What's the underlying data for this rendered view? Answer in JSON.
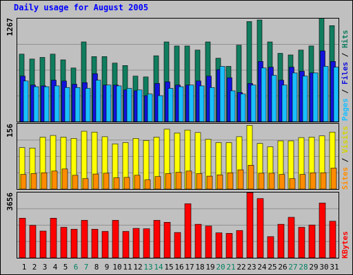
{
  "chart_data": [
    {
      "type": "bar",
      "title": "Daily usage for August 2005",
      "panel": "top",
      "max_label": "1267",
      "ylim": [
        0,
        1267
      ],
      "categories": [
        "1",
        "2",
        "3",
        "4",
        "5",
        "6",
        "7",
        "8",
        "9",
        "10",
        "11",
        "12",
        "13",
        "14",
        "15",
        "16",
        "17",
        "18",
        "19",
        "20",
        "21",
        "22",
        "23",
        "24",
        "25",
        "26",
        "27",
        "28",
        "29",
        "30",
        "31"
      ],
      "weekend_days": [
        "6",
        "7",
        "13",
        "14",
        "20",
        "21",
        "27",
        "28"
      ],
      "y_label_parts": [
        "Pages",
        "Files",
        "Hits"
      ],
      "series": [
        {
          "name": "Hits",
          "color": "#107d5e",
          "values": [
            830,
            770,
            790,
            830,
            760,
            660,
            980,
            800,
            800,
            720,
            690,
            560,
            550,
            810,
            980,
            930,
            930,
            880,
            980,
            780,
            680,
            940,
            1230,
            1250,
            980,
            840,
            820,
            880,
            930,
            1270,
            1180
          ]
        },
        {
          "name": "Files",
          "color": "#1212dc",
          "values": [
            560,
            450,
            440,
            510,
            500,
            460,
            480,
            590,
            450,
            450,
            390,
            380,
            320,
            470,
            490,
            450,
            450,
            500,
            560,
            640,
            540,
            360,
            470,
            740,
            670,
            510,
            670,
            620,
            600,
            870,
            740
          ]
        },
        {
          "name": "Pages",
          "color": "#19bfff",
          "values": [
            500,
            430,
            430,
            440,
            420,
            420,
            410,
            510,
            450,
            440,
            410,
            390,
            340,
            320,
            410,
            430,
            450,
            440,
            420,
            680,
            380,
            340,
            450,
            660,
            570,
            450,
            600,
            560,
            600,
            680,
            670
          ]
        }
      ],
      "grid": true
    },
    {
      "type": "bar",
      "panel": "middle",
      "max_label": "156",
      "ylim": [
        0,
        156
      ],
      "categories": [
        "1",
        "2",
        "3",
        "4",
        "5",
        "6",
        "7",
        "8",
        "9",
        "10",
        "11",
        "12",
        "13",
        "14",
        "15",
        "16",
        "17",
        "18",
        "19",
        "20",
        "21",
        "22",
        "23",
        "24",
        "25",
        "26",
        "27",
        "28",
        "29",
        "30",
        "31"
      ],
      "y_label_parts": [
        "Sites",
        "Visits"
      ],
      "series": [
        {
          "name": "Visits",
          "color": "#ffff00",
          "values": [
            99,
            98,
            124,
            128,
            124,
            121,
            138,
            136,
            125,
            108,
            111,
            121,
            116,
            124,
            143,
            134,
            141,
            135,
            119,
            111,
            111,
            125,
            152,
            109,
            101,
            115,
            115,
            123,
            124,
            127,
            136
          ]
        },
        {
          "name": "Sites",
          "color": "#ff8c00",
          "values": [
            35,
            37,
            39,
            43,
            48,
            33,
            25,
            36,
            38,
            27,
            28,
            33,
            22,
            30,
            37,
            40,
            43,
            37,
            31,
            34,
            39,
            46,
            57,
            38,
            38,
            35,
            25,
            35,
            39,
            39,
            50
          ]
        }
      ],
      "grid": true
    },
    {
      "type": "bar",
      "panel": "bottom",
      "max_label": "3656",
      "ylim": [
        0,
        3656
      ],
      "categories": [
        "1",
        "2",
        "3",
        "4",
        "5",
        "6",
        "7",
        "8",
        "9",
        "10",
        "11",
        "12",
        "13",
        "14",
        "15",
        "16",
        "17",
        "18",
        "19",
        "20",
        "21",
        "22",
        "23",
        "24",
        "25",
        "26",
        "27",
        "28",
        "29",
        "30",
        "31"
      ],
      "y_label_parts": [
        "KBytes"
      ],
      "series": [
        {
          "name": "KBytes",
          "color": "#ff0000",
          "values": [
            2220,
            1820,
            1500,
            2220,
            1710,
            1600,
            2100,
            1600,
            1480,
            2100,
            1480,
            1650,
            1630,
            2100,
            1990,
            1420,
            3030,
            1880,
            1780,
            1400,
            1370,
            1530,
            3650,
            3320,
            1190,
            1880,
            2270,
            1710,
            1840,
            3070,
            2050
          ]
        }
      ],
      "grid": true
    }
  ]
}
